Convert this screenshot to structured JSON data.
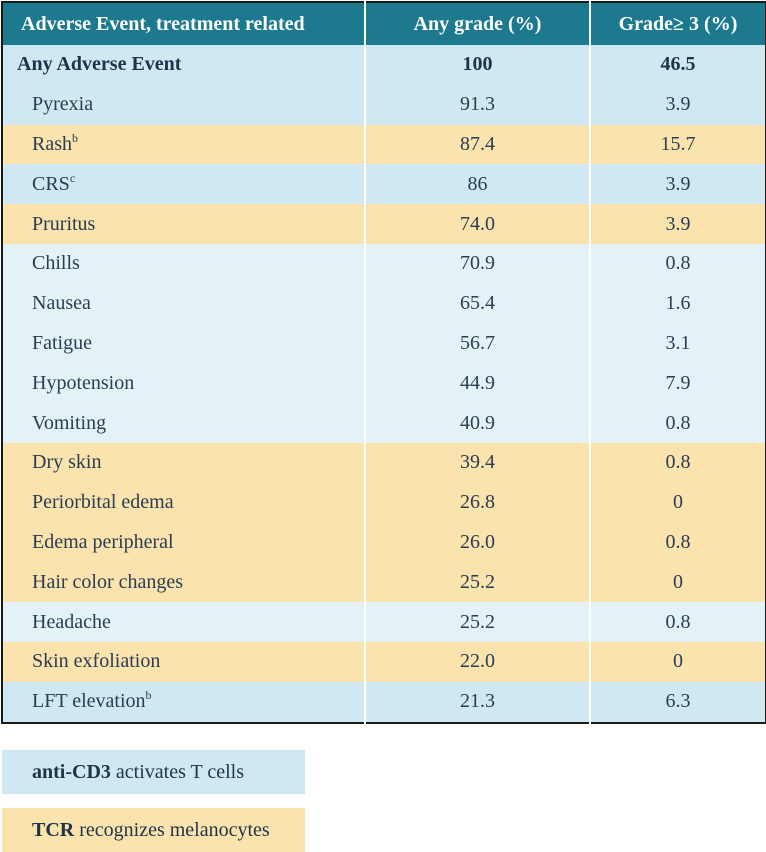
{
  "headers": [
    "Adverse Event, treatment related",
    "Any grade (%)",
    "Grade≥ 3 (%)"
  ],
  "rows": [
    {
      "event": "Any Adverse Event",
      "sup": "",
      "any": "100",
      "g3": "46.5",
      "group": "total"
    },
    {
      "event": "Pyrexia",
      "sup": "",
      "any": "91.3",
      "g3": "3.9",
      "group": "blue"
    },
    {
      "event": "Rash",
      "sup": "b",
      "any": "87.4",
      "g3": "15.7",
      "group": "orange"
    },
    {
      "event": "CRS",
      "sup": "c",
      "any": "86",
      "g3": "3.9",
      "group": "blue"
    },
    {
      "event": "Pruritus",
      "sup": "",
      "any": "74.0",
      "g3": "3.9",
      "group": "orange"
    },
    {
      "event": "Chills",
      "sup": "",
      "any": "70.9",
      "g3": "0.8",
      "group": "light"
    },
    {
      "event": "Nausea",
      "sup": "",
      "any": "65.4",
      "g3": "1.6",
      "group": "light"
    },
    {
      "event": "Fatigue",
      "sup": "",
      "any": "56.7",
      "g3": "3.1",
      "group": "light"
    },
    {
      "event": "Hypotension",
      "sup": "",
      "any": "44.9",
      "g3": "7.9",
      "group": "light"
    },
    {
      "event": "Vomiting",
      "sup": "",
      "any": "40.9",
      "g3": "0.8",
      "group": "light"
    },
    {
      "event": "Dry skin",
      "sup": "",
      "any": "39.4",
      "g3": "0.8",
      "group": "orange"
    },
    {
      "event": "Periorbital edema",
      "sup": "",
      "any": "26.8",
      "g3": "0",
      "group": "orange"
    },
    {
      "event": "Edema peripheral",
      "sup": "",
      "any": "26.0",
      "g3": "0.8",
      "group": "orange"
    },
    {
      "event": "Hair color changes",
      "sup": "",
      "any": "25.2",
      "g3": "0",
      "group": "orange"
    },
    {
      "event": "Headache",
      "sup": "",
      "any": "25.2",
      "g3": "0.8",
      "group": "light"
    },
    {
      "event": "Skin exfoliation",
      "sup": "",
      "any": "22.0",
      "g3": "0",
      "group": "orange"
    },
    {
      "event": "LFT elevation",
      "sup": "b",
      "any": "21.3",
      "g3": "6.3",
      "group": "blue"
    }
  ],
  "legend": [
    {
      "bold": "anti-CD3",
      "text": "activates T cells"
    },
    {
      "bold": "TCR",
      "text": "recognizes melanocytes"
    }
  ],
  "colors": {
    "header": "#1d7a8e",
    "blue": "#cfe8f2",
    "orange": "#fbe3ae",
    "light": "#e4f2f8"
  }
}
